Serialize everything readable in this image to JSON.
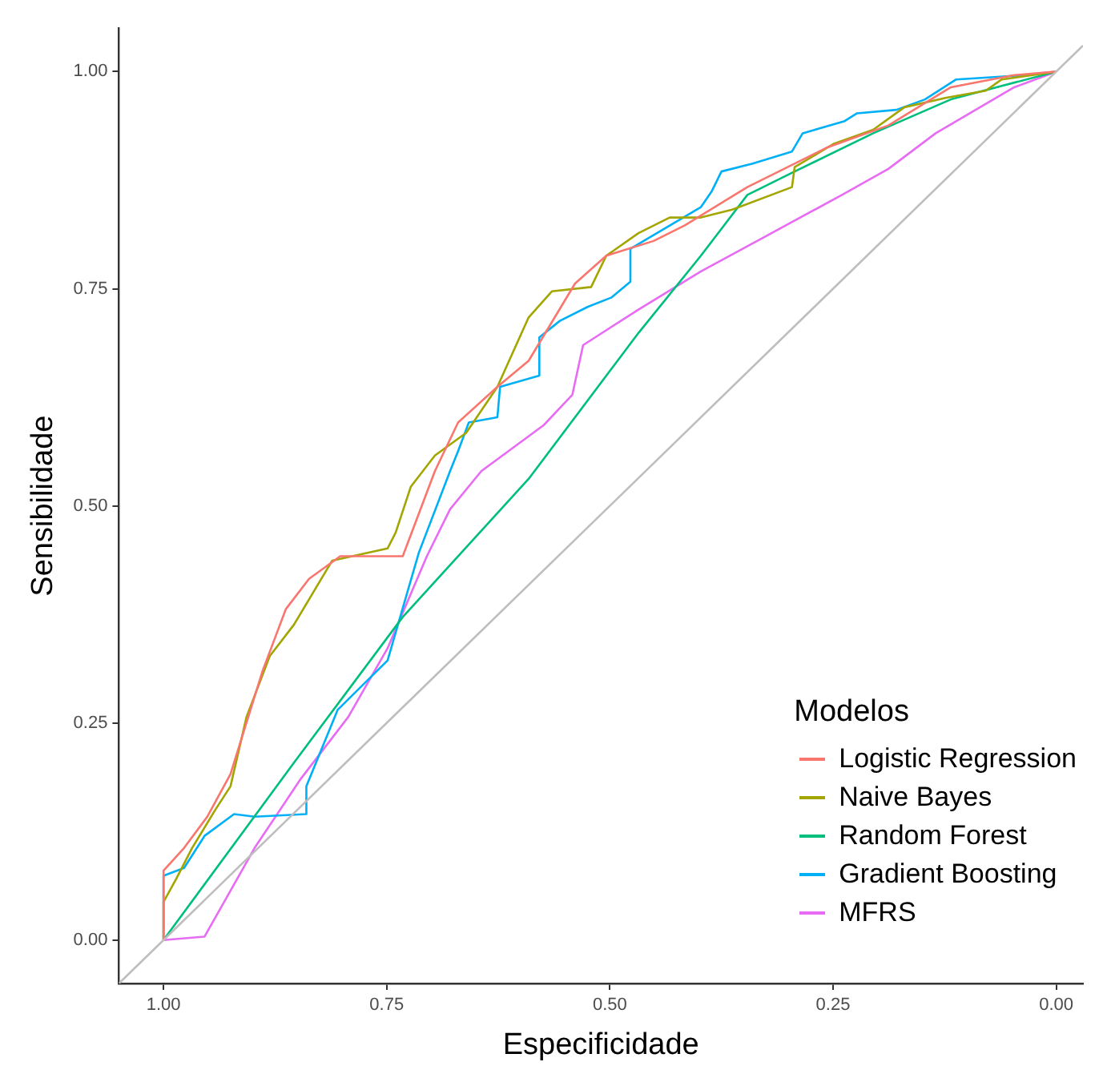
{
  "chart_data": {
    "type": "line",
    "xlabel": "Especificidade",
    "ylabel": "Sensibilidade",
    "legend_title": "Modelos",
    "legend": "bottom right",
    "grid": false,
    "marker": "none",
    "line_style": "solid",
    "xlim": [
      1.05,
      -0.03
    ],
    "ylim": [
      -0.05,
      1.05
    ],
    "xticks": [
      {
        "value": 1,
        "label": "1.00"
      },
      {
        "value": 0.75,
        "label": "0.75"
      },
      {
        "value": 0.5,
        "label": "0.50"
      },
      {
        "value": 0.25,
        "label": "0.25"
      },
      {
        "value": 0,
        "label": "0.00"
      }
    ],
    "yticks": [
      {
        "value": 0,
        "label": "0.00"
      },
      {
        "value": 0.25,
        "label": "0.25"
      },
      {
        "value": 0.5,
        "label": "0.50"
      },
      {
        "value": 0.75,
        "label": "0.75"
      },
      {
        "value": 1,
        "label": "1.00"
      }
    ],
    "series": [
      {
        "color": "#bebebe",
        "x": [
          1.05,
          -0.03
        ],
        "values": [
          -0.05,
          1.03
        ]
      },
      {
        "name": "Logistic Regression",
        "color": "#f8766d",
        "x": [
          1,
          1,
          0.977,
          0.951,
          0.925,
          0.889,
          0.863,
          0.837,
          0.802,
          0.732,
          0.696,
          0.67,
          0.626,
          0.591,
          0.539,
          0.504,
          0.451,
          0.416,
          0.346,
          0.258,
          0.188,
          0.118,
          0.047,
          0
        ],
        "values": [
          0,
          0.08,
          0.106,
          0.142,
          0.191,
          0.31,
          0.381,
          0.416,
          0.442,
          0.442,
          0.54,
          0.596,
          0.637,
          0.667,
          0.756,
          0.788,
          0.805,
          0.823,
          0.867,
          0.912,
          0.938,
          0.982,
          0.996,
          1
        ]
      },
      {
        "name": "Naive Bayes",
        "color": "#a3a500",
        "x": [
          1,
          1,
          0.986,
          0.968,
          0.942,
          0.925,
          0.907,
          0.881,
          0.854,
          0.811,
          0.749,
          0.74,
          0.723,
          0.696,
          0.661,
          0.626,
          0.591,
          0.565,
          0.521,
          0.504,
          0.468,
          0.433,
          0.398,
          0.363,
          0.296,
          0.293,
          0.249,
          0.205,
          0.17,
          0.123,
          0.079,
          0.061,
          0
        ],
        "values": [
          0,
          0.044,
          0.07,
          0.106,
          0.15,
          0.177,
          0.257,
          0.327,
          0.363,
          0.437,
          0.451,
          0.469,
          0.522,
          0.558,
          0.584,
          0.637,
          0.717,
          0.747,
          0.752,
          0.788,
          0.814,
          0.832,
          0.832,
          0.841,
          0.867,
          0.89,
          0.917,
          0.933,
          0.959,
          0.97,
          0.978,
          0.991,
          1
        ]
      },
      {
        "name": "Random Forest",
        "color": "#00bf7d",
        "x": [
          1,
          0.854,
          0.732,
          0.591,
          0.468,
          0.398,
          0.346,
          0.293,
          0.205,
          0.118,
          0
        ],
        "values": [
          0,
          0.204,
          0.372,
          0.531,
          0.699,
          0.788,
          0.858,
          0.885,
          0.929,
          0.968,
          1
        ]
      },
      {
        "name": "Gradient Boosting",
        "color": "#00b0f6",
        "x": [
          1,
          1,
          0.977,
          0.954,
          0.921,
          0.898,
          0.84,
          0.84,
          0.805,
          0.749,
          0.714,
          0.679,
          0.67,
          0.658,
          0.626,
          0.623,
          0.579,
          0.579,
          0.556,
          0.525,
          0.498,
          0.477,
          0.477,
          0.398,
          0.386,
          0.375,
          0.34,
          0.296,
          0.284,
          0.237,
          0.223,
          0.179,
          0.147,
          0.112,
          0.035,
          0
        ],
        "values": [
          0,
          0.074,
          0.083,
          0.12,
          0.145,
          0.142,
          0.145,
          0.177,
          0.265,
          0.322,
          0.446,
          0.54,
          0.563,
          0.596,
          0.602,
          0.637,
          0.65,
          0.694,
          0.713,
          0.729,
          0.74,
          0.758,
          0.796,
          0.844,
          0.862,
          0.885,
          0.894,
          0.908,
          0.929,
          0.943,
          0.952,
          0.956,
          0.968,
          0.991,
          0.996,
          1
        ]
      },
      {
        "name": "MFRS",
        "color": "#e76bf3",
        "x": [
          1,
          0.954,
          0.898,
          0.846,
          0.793,
          0.749,
          0.705,
          0.679,
          0.644,
          0.574,
          0.542,
          0.53,
          0.468,
          0.398,
          0.328,
          0.24,
          0.188,
          0.135,
          0.047,
          0
        ],
        "values": [
          0,
          0.004,
          0.106,
          0.186,
          0.257,
          0.336,
          0.442,
          0.496,
          0.54,
          0.593,
          0.628,
          0.685,
          0.726,
          0.77,
          0.809,
          0.858,
          0.888,
          0.929,
          0.982,
          1
        ]
      }
    ]
  }
}
